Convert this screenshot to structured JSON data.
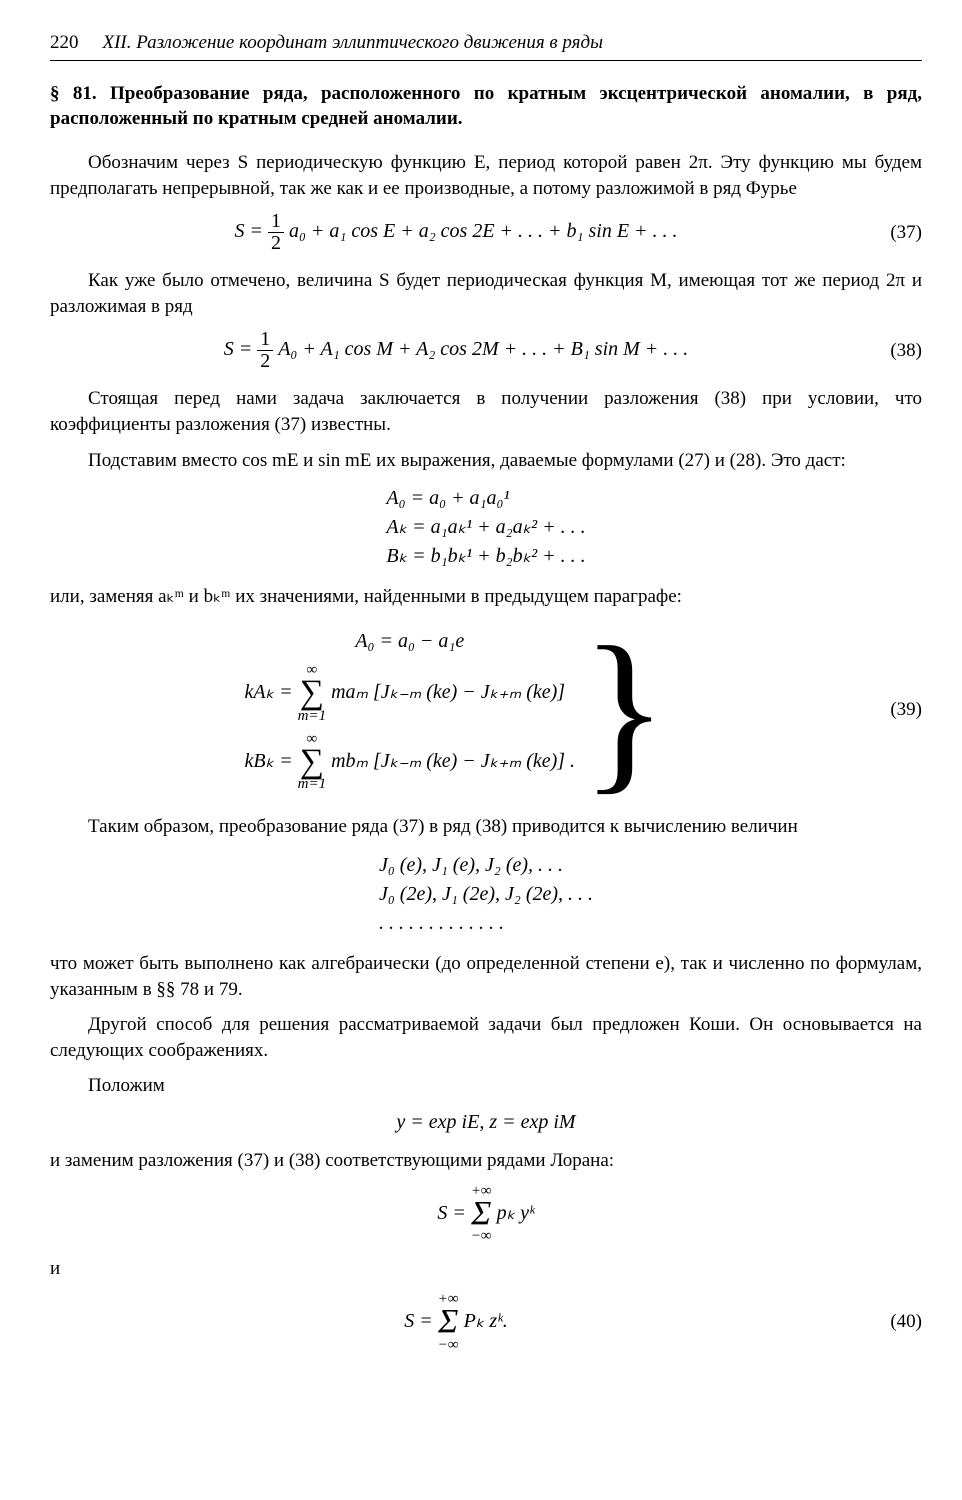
{
  "header": {
    "page_number": "220",
    "chapter_title": "XII. Разложение координат эллиптического движения в ряды"
  },
  "section": {
    "title": "§ 81. Преобразование ряда, расположенного по кратным эксцентрической аномалии, в ряд, расположенный по кратным средней аномалии."
  },
  "p1": "Обозначим через S периодическую функцию E, период которой равен 2π. Эту функцию мы будем предполагать непрерывной, так же как и ее производные, а потому разложимой в ряд Фурье",
  "eq37": {
    "prefix": "S = ",
    "half_a0": {
      "n": "1",
      "d": "2"
    },
    "a0": " a₀ + a₁ cos E + a₂ cos 2E + . . . + b₁ sin E + . . .",
    "num": "(37)"
  },
  "p2": "Как уже было отмечено, величина S будет периодическая функция M, имеющая тот же период 2π и разложимая в ряд",
  "eq38": {
    "prefix": "S = ",
    "half_A0": {
      "n": "1",
      "d": "2"
    },
    "rest": " A₀ + A₁ cos M + A₂ cos 2M + . . . + B₁ sin M + . . .",
    "num": "(38)"
  },
  "p3": "Стоящая перед нами задача заключается в получении разложения (38) при условии, что коэффициенты разложения (37) известны.",
  "p4": "Подставим вместо cos mE и sin mE их выражения, даваемые формулами (27) и (28). Это даст:",
  "eqblock_AB": {
    "l1": "A₀ = a₀ + a₁a₀¹",
    "l2": "Aₖ = a₁aₖ¹ + a₂aₖ² + . . .",
    "l3": "Bₖ = b₁bₖ¹ + b₂bₖ² + . . ."
  },
  "p5": "или, заменяя aₖᵐ и bₖᵐ их значениями, найденными в предыдущем параграфе:",
  "eq39": {
    "l1": "A₀ = a₀ − a₁e",
    "l2_lhs": "kAₖ = ",
    "l2_sum_top": "∞",
    "l2_sum_bot": "m=1",
    "l2_rhs": " maₘ [Jₖ₋ₘ (ke) − Jₖ₊ₘ (ke)]",
    "l3_lhs": "kBₖ = ",
    "l3_sum_top": "∞",
    "l3_sum_bot": "m=1",
    "l3_rhs": " mbₘ [Jₖ₋ₘ (ke) − Jₖ₊ₘ (ke)] .",
    "num": "(39)"
  },
  "p6": "Таким образом, преобразование ряда (37) в ряд (38) приводится к вычислению величин",
  "Jarray": {
    "r1": "J₀ (e),     J₁ (e),    J₂ (e), . . .",
    "r2": "J₀ (2e),   J₁ (2e),   J₂ (2e), . . .",
    "r3": ".  .  .  .  .  .  .  .  .  .  .  .  ."
  },
  "p7": "что может быть выполнено как алгебраически (до определенной степени e), так и численно по формулам, указанным в §§ 78 и 79.",
  "p8": "Другой способ для решения рассматриваемой задачи был предложен Коши. Он основывается на следующих соображениях.",
  "p9": "Положим",
  "eq_yz": "y = exp iE,        z = exp iM",
  "p10": "и заменим разложения (37) и (38) соответствующими рядами Лорана:",
  "eq_Sp": {
    "prefix": "S = ",
    "top": "+∞",
    "bot": "−∞",
    "rhs": " pₖ yᵏ"
  },
  "p11": "и",
  "eq40": {
    "prefix": "S = ",
    "top": "+∞",
    "bot": "−∞",
    "rhs": " Pₖ zᵏ.",
    "num": "(40)"
  }
}
